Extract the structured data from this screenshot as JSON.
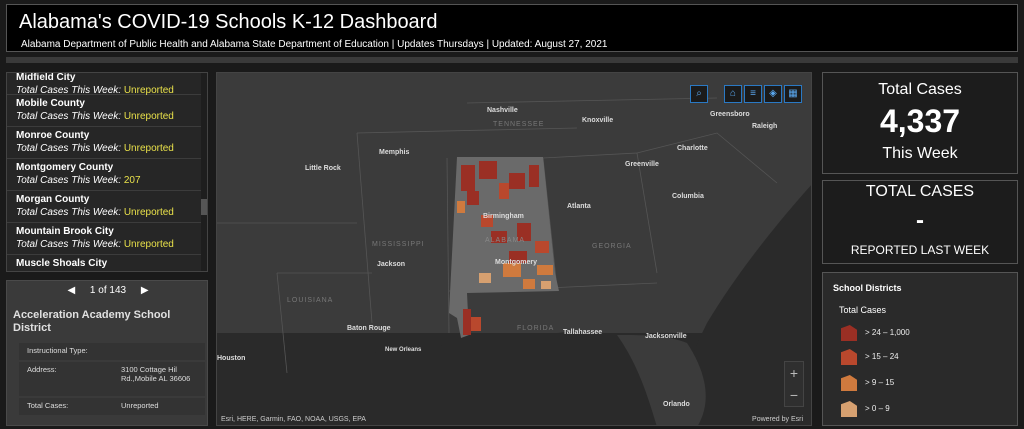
{
  "header": {
    "title": "Alabama's COVID-19 Schools K-12 Dashboard",
    "subtitle": "Alabama Department of Public Health and Alabama State Department of Education | Updates Thursdays | Updated: August 27, 2021"
  },
  "list": {
    "label": "Total Cases This Week:",
    "items": [
      {
        "name": "Midfield City",
        "value": "Unreported"
      },
      {
        "name": "Mobile County",
        "value": "Unreported"
      },
      {
        "name": "Monroe County",
        "value": "Unreported"
      },
      {
        "name": "Montgomery County",
        "value": "207"
      },
      {
        "name": "Morgan County",
        "value": "Unreported"
      },
      {
        "name": "Mountain Brook City",
        "value": "Unreported"
      },
      {
        "name": "Muscle Shoals City",
        "value": ""
      }
    ]
  },
  "detail": {
    "pager": "1 of 143",
    "prev_icon": "◀",
    "next_icon": "▶",
    "title": "Acceleration Academy School District",
    "rows": [
      {
        "key": "Instructional Type:",
        "value": ""
      },
      {
        "key": "Address:",
        "value": "3100 Cottage Hil Rd.,Mobile AL 36606"
      },
      {
        "key": "Total Cases:",
        "value": "Unreported"
      }
    ]
  },
  "map": {
    "cities": [
      "Nashville",
      "Knoxville",
      "Greensboro",
      "Raleigh",
      "Charlotte",
      "Memphis",
      "Little Rock",
      "Greenville",
      "Columbia",
      "Atlanta",
      "Birmingham",
      "Jackson",
      "Montgomery",
      "Baton Rouge",
      "New Orleans",
      "Tallahassee",
      "Jacksonville",
      "Orlando",
      "Houston"
    ],
    "states": [
      "TENNESSEE",
      "MISSISSIPPI",
      "GEORGIA",
      "LOUISIANA",
      "FLORIDA",
      "ALABAMA"
    ],
    "attribution": "Esri, HERE, Garmin, FAO, NOAA, USGS, EPA",
    "powered": "Powered by Esri",
    "zoom_in": "+",
    "zoom_out": "−",
    "tools": [
      "search-icon",
      "home-icon",
      "list-icon",
      "layers-icon",
      "grid-icon"
    ]
  },
  "total_cases": {
    "label": "Total Cases",
    "value": "4,337",
    "sub": "This Week"
  },
  "last_week": {
    "label": "TOTAL CASES",
    "value": "-",
    "sub": "REPORTED LAST WEEK"
  },
  "legend": {
    "title": "School Districts",
    "subtitle": "Total Cases",
    "items": [
      {
        "label": "> 24 – 1,000",
        "color": "#9a2f24"
      },
      {
        "label": "> 15 – 24",
        "color": "#b9482d"
      },
      {
        "label": "> 9 – 15",
        "color": "#cf7a3e"
      },
      {
        "label": "> 0 – 9",
        "color": "#d6a070"
      }
    ]
  },
  "colors": {
    "accent_value": "#e8e04a",
    "tool_border": "#2a79c4"
  }
}
